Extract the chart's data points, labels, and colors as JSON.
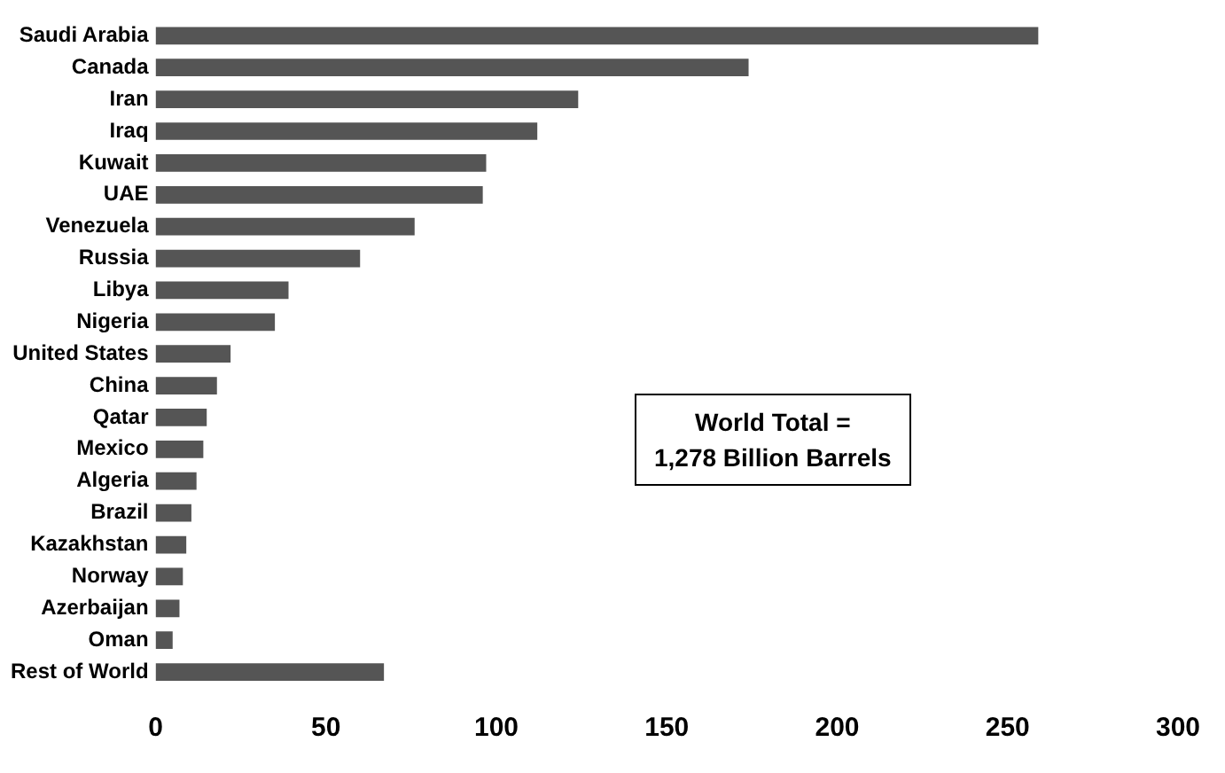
{
  "chart_data": {
    "type": "bar",
    "orientation": "horizontal",
    "categories": [
      "Saudi Arabia",
      "Canada",
      "Iran",
      "Iraq",
      "Kuwait",
      "UAE",
      "Venezuela",
      "Russia",
      "Libya",
      "Nigeria",
      "United States",
      "China",
      "Qatar",
      "Mexico",
      "Algeria",
      "Brazil",
      "Kazakhstan",
      "Norway",
      "Azerbaijan",
      "Oman",
      "Rest of World"
    ],
    "values": [
      259,
      174,
      124,
      112,
      97,
      96,
      76,
      60,
      39,
      35,
      22,
      18,
      15,
      14,
      12,
      10.5,
      9,
      8,
      7,
      5,
      67
    ],
    "color": "#555555",
    "xlim": [
      0,
      300
    ],
    "xticks": [
      0,
      50,
      100,
      150,
      200,
      250,
      300
    ],
    "grid": false,
    "legend": false,
    "annotations": [
      "World Total =\n1,278 Billion Barrels"
    ]
  }
}
